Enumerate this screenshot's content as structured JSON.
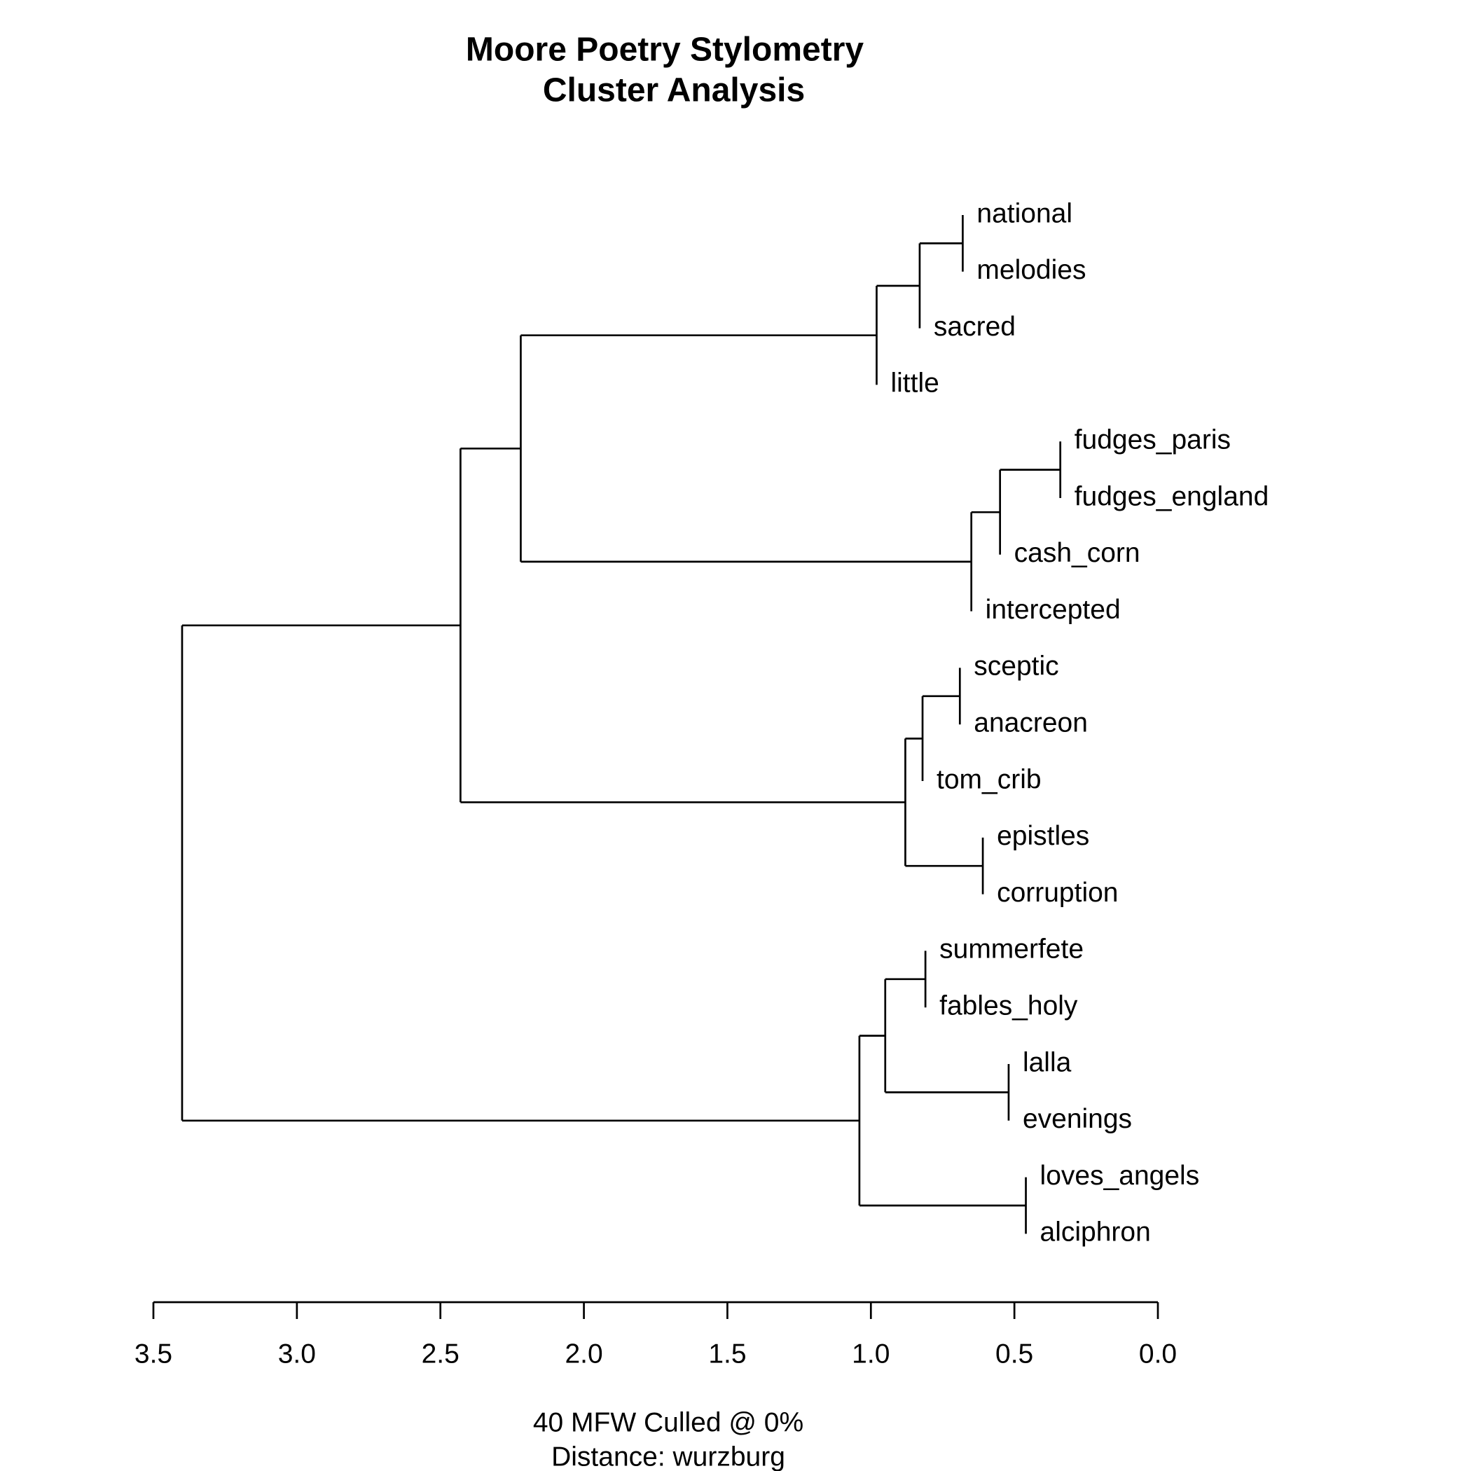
{
  "chart_data": {
    "type": "dendrogram",
    "title": [
      "Moore Poetry Stylometry",
      "Cluster Analysis"
    ],
    "xlabel": [
      "40 MFW  Culled @ 0%",
      "Distance: wurzburg"
    ],
    "xlim": [
      3.5,
      0
    ],
    "xticks": [
      3.5,
      {
        "value": 3,
        "label": "3.0"
      },
      2.5,
      {
        "value": 2,
        "label": "2.0"
      },
      1.5,
      {
        "value": 1,
        "label": "1.0"
      },
      0.5,
      {
        "value": 0,
        "label": "0.0"
      }
    ],
    "tree": {
      "height": 3.4,
      "children": [
        {
          "height": 2.43,
          "children": [
            {
              "height": 2.22,
              "children": [
                {
                  "height": 0.98,
                  "children": [
                    {
                      "height": 0.83,
                      "children": [
                        {
                          "height": 0.68,
                          "children": [
                            {
                              "label": "national"
                            },
                            {
                              "label": "melodies"
                            }
                          ]
                        },
                        {
                          "label": "sacred"
                        }
                      ]
                    },
                    {
                      "label": "little"
                    }
                  ]
                },
                {
                  "height": 0.65,
                  "children": [
                    {
                      "height": 0.55,
                      "children": [
                        {
                          "height": 0.34,
                          "children": [
                            {
                              "label": "fudges_paris"
                            },
                            {
                              "label": "fudges_england"
                            }
                          ]
                        },
                        {
                          "label": "cash_corn"
                        }
                      ]
                    },
                    {
                      "label": "intercepted"
                    }
                  ]
                }
              ]
            },
            {
              "height": 0.88,
              "children": [
                {
                  "height": 0.82,
                  "children": [
                    {
                      "height": 0.69,
                      "children": [
                        {
                          "label": "sceptic"
                        },
                        {
                          "label": "anacreon"
                        }
                      ]
                    },
                    {
                      "label": "tom_crib"
                    }
                  ]
                },
                {
                  "height": 0.61,
                  "children": [
                    {
                      "label": "epistles"
                    },
                    {
                      "label": "corruption"
                    }
                  ]
                }
              ]
            }
          ]
        },
        {
          "height": 1.04,
          "children": [
            {
              "height": 0.95,
              "children": [
                {
                  "height": 0.81,
                  "children": [
                    {
                      "label": "summerfete"
                    },
                    {
                      "label": "fables_holy"
                    }
                  ]
                },
                {
                  "height": 0.52,
                  "children": [
                    {
                      "label": "lalla"
                    },
                    {
                      "label": "evenings"
                    }
                  ]
                }
              ]
            },
            {
              "height": 0.46,
              "children": [
                {
                  "label": "loves_angels"
                },
                {
                  "label": "alciphron"
                }
              ]
            }
          ]
        }
      ]
    }
  }
}
